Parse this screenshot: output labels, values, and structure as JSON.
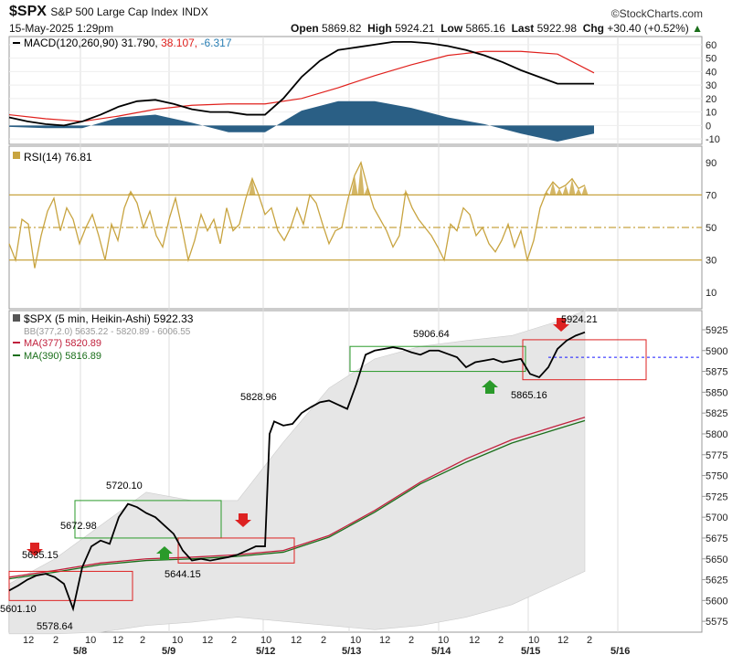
{
  "header": {
    "symbol": "$SPX",
    "name": "S&P 500 Large Cap Index",
    "exchange": "INDX",
    "datetime": "15-May-2025 1:29pm",
    "brand": "©StockCharts.com",
    "open_label": "Open",
    "open": "5869.82",
    "high_label": "High",
    "high": "5924.21",
    "low_label": "Low",
    "low": "5865.16",
    "last_label": "Last",
    "last": "5922.98",
    "chg_label": "Chg",
    "chg": "+30.40 (+0.52%)"
  },
  "colors": {
    "macd": "#000000",
    "signal": "#e0201c",
    "hist": "#2a5f85",
    "rsi": "#c8a440",
    "rsiline": "#c8a440",
    "price": "#000000",
    "ma377": "#c0203c",
    "ma390": "#1a6e1a",
    "band": "#e6e6e6",
    "redbox": "#dd2222",
    "greenbox": "#2a9a2a",
    "dash": "#1a1aff"
  },
  "chart_data": [
    {
      "type": "line",
      "panel": "macd",
      "legend": "MACD(120,260,90)",
      "values_text": {
        "macd": "31.790",
        "signal": "38.107",
        "hist": "-6.317"
      },
      "ylim": [
        -14,
        66
      ],
      "yticks": [
        "60",
        "50",
        "40",
        "30",
        "20",
        "10",
        "0",
        "-10"
      ],
      "series": [
        {
          "name": "MACD",
          "x": [
            0,
            20,
            40,
            60,
            80,
            100,
            120,
            140,
            160,
            180,
            200,
            220,
            240,
            260,
            280,
            300,
            320,
            340,
            360,
            380,
            400,
            420,
            440,
            460,
            480,
            500,
            520,
            540,
            560,
            580,
            600,
            620,
            640
          ],
          "values": [
            6,
            3,
            1,
            0,
            3,
            8,
            14,
            18,
            19,
            16,
            12,
            10,
            10,
            8,
            8,
            20,
            36,
            48,
            56,
            58,
            60,
            62,
            62,
            61,
            59,
            56,
            52,
            47,
            41,
            36,
            31,
            31,
            31
          ]
        },
        {
          "name": "Signal",
          "x": [
            0,
            40,
            80,
            120,
            160,
            200,
            240,
            280,
            320,
            360,
            400,
            440,
            480,
            520,
            560,
            600,
            640
          ],
          "values": [
            8,
            5,
            3,
            7,
            12,
            15,
            16,
            16,
            20,
            28,
            37,
            45,
            52,
            55,
            55,
            53,
            39
          ]
        },
        {
          "name": "Histogram",
          "x": [
            0,
            40,
            80,
            120,
            160,
            200,
            240,
            280,
            320,
            360,
            400,
            440,
            480,
            520,
            560,
            600,
            640
          ],
          "values": [
            -1,
            -2,
            -2,
            6,
            8,
            2,
            -5,
            -5,
            11,
            18,
            18,
            13,
            6,
            1,
            -6,
            -12,
            -6
          ]
        }
      ]
    },
    {
      "type": "line",
      "panel": "rsi",
      "legend": "RSI(14)",
      "value": "76.81",
      "ylim": [
        0,
        100
      ],
      "levels": [
        70,
        50,
        30
      ],
      "yticks": [
        "90",
        "70",
        "50",
        "30",
        "10"
      ],
      "values": [
        40,
        30,
        55,
        52,
        25,
        45,
        60,
        68,
        48,
        62,
        55,
        40,
        50,
        58,
        45,
        30,
        52,
        42,
        62,
        72,
        65,
        50,
        60,
        45,
        38,
        55,
        68,
        50,
        30,
        42,
        58,
        48,
        55,
        40,
        62,
        48,
        52,
        68,
        80,
        70,
        58,
        62,
        48,
        42,
        50,
        62,
        52,
        70,
        65,
        52,
        40,
        48,
        50,
        68,
        82,
        90,
        75,
        62,
        55,
        48,
        38,
        45,
        72,
        62,
        55,
        50,
        45,
        38,
        30,
        52,
        48,
        62,
        58,
        45,
        50,
        40,
        35,
        42,
        52,
        38,
        48,
        30,
        42,
        62,
        72,
        78,
        74,
        76,
        80,
        74,
        76
      ]
    },
    {
      "type": "line",
      "panel": "price",
      "legend": "$SPX (5 min, Heikin-Ashi)",
      "last": "5922.33",
      "bb_legend": "BB(377,2.0)",
      "bb_values": "5635.22 - 5820.89 - 6006.55",
      "ma377_legend": "MA(377)",
      "ma377_value": "5820.89",
      "ma390_legend": "MA(390)",
      "ma390_value": "5816.89",
      "ylim": [
        5562,
        5948
      ],
      "yticks": [
        "5925",
        "5900",
        "5875",
        "5850",
        "5825",
        "5800",
        "5775",
        "5750",
        "5725",
        "5700",
        "5675",
        "5650",
        "5625",
        "5600",
        "5575"
      ],
      "xlabels": [
        "12",
        "2",
        "10",
        "12",
        "2",
        "10",
        "12",
        "2",
        "10",
        "12",
        "2",
        "10",
        "12",
        "2",
        "10",
        "12",
        "2",
        "10",
        "12",
        "2"
      ],
      "datelabels": [
        "5/8",
        "5/9",
        "5/12",
        "5/13",
        "5/14",
        "5/15",
        "5/16"
      ],
      "annotations": [
        "5635.15",
        "5601.10",
        "5578.64",
        "5672.98",
        "5720.10",
        "5644.15",
        "5828.96",
        "5906.64",
        "5865.16",
        "5924.21"
      ],
      "x": [
        0,
        10,
        20,
        30,
        40,
        50,
        60,
        70,
        80,
        90,
        100,
        110,
        120,
        130,
        140,
        150,
        160,
        170,
        180,
        190,
        200,
        210,
        220,
        230,
        240,
        250,
        260,
        270,
        280,
        285,
        290,
        300,
        310,
        320,
        330,
        340,
        350,
        360,
        370,
        380,
        390,
        400,
        410,
        420,
        430,
        440,
        450,
        460,
        470,
        480,
        490,
        500,
        510,
        520,
        530,
        540,
        550,
        560,
        570,
        580,
        590,
        600,
        610,
        620,
        630
      ],
      "values": [
        5612,
        5618,
        5625,
        5630,
        5632,
        5628,
        5620,
        5590,
        5640,
        5665,
        5672,
        5668,
        5700,
        5716,
        5712,
        5705,
        5700,
        5690,
        5680,
        5660,
        5648,
        5650,
        5648,
        5650,
        5652,
        5655,
        5660,
        5665,
        5665,
        5800,
        5815,
        5810,
        5812,
        5825,
        5832,
        5838,
        5840,
        5835,
        5830,
        5860,
        5895,
        5900,
        5902,
        5904,
        5902,
        5898,
        5895,
        5900,
        5900,
        5896,
        5892,
        5880,
        5886,
        5888,
        5890,
        5886,
        5888,
        5890,
        5872,
        5868,
        5880,
        5902,
        5912,
        5918,
        5922
      ],
      "ma_x": [
        0,
        50,
        100,
        150,
        200,
        250,
        300,
        350,
        400,
        450,
        500,
        550,
        600,
        630
      ],
      "ma377": [
        5628,
        5636,
        5645,
        5650,
        5652,
        5655,
        5660,
        5678,
        5708,
        5742,
        5770,
        5793,
        5810,
        5820
      ],
      "ma390": [
        5626,
        5634,
        5643,
        5648,
        5650,
        5653,
        5658,
        5676,
        5706,
        5740,
        5766,
        5789,
        5806,
        5816
      ],
      "bb_upper": [
        5620,
        5650,
        5690,
        5730,
        5720,
        5720,
        5790,
        5855,
        5890,
        5905,
        5912,
        5918,
        5935,
        5948
      ],
      "bb_lower": [
        5560,
        5560,
        5562,
        5570,
        5574,
        5580,
        5575,
        5570,
        5565,
        5570,
        5580,
        5595,
        5620,
        5635
      ]
    }
  ]
}
